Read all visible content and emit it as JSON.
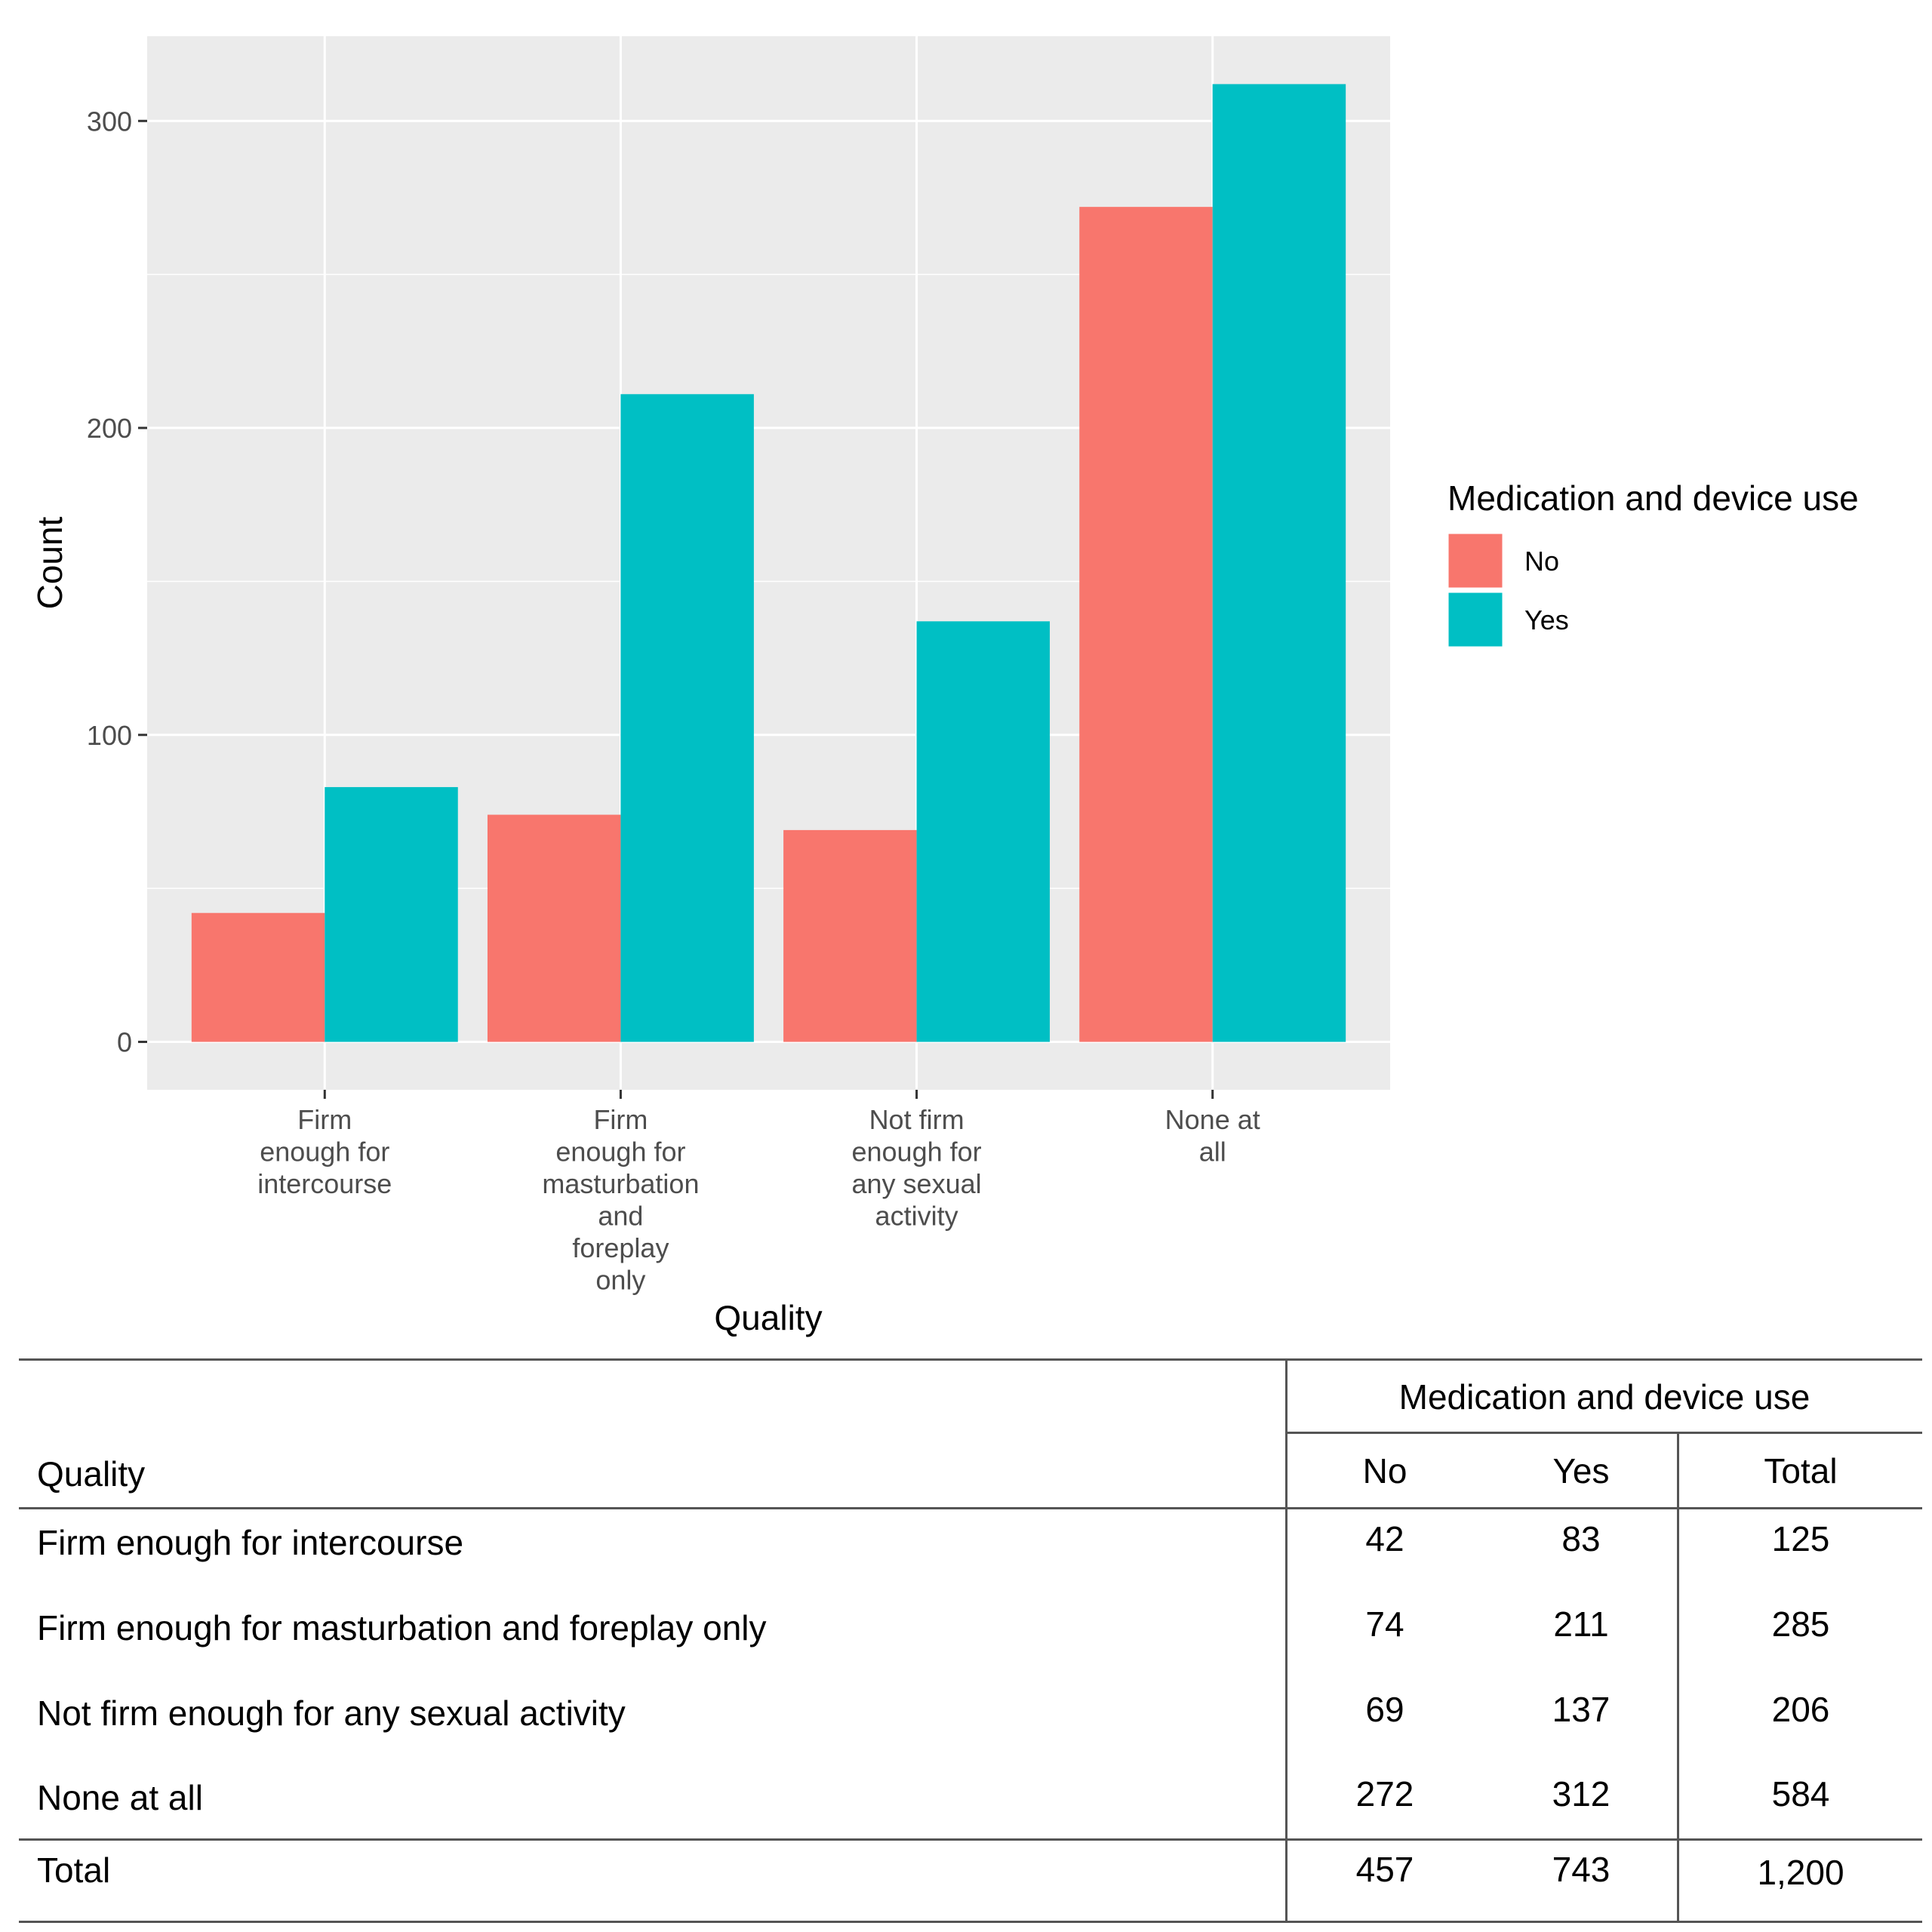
{
  "chart_data": {
    "type": "bar",
    "categories": [
      [
        "Firm",
        "enough for",
        "intercourse"
      ],
      [
        "Firm",
        "enough for",
        "masturbation",
        "and",
        "foreplay",
        "only"
      ],
      [
        "Not firm",
        "enough for",
        "any sexual",
        "activity"
      ],
      [
        "None at",
        "all"
      ]
    ],
    "series": [
      {
        "name": "No",
        "values": [
          42,
          74,
          69,
          272
        ],
        "color": "#F8766D"
      },
      {
        "name": "Yes",
        "values": [
          83,
          211,
          137,
          312
        ],
        "color": "#00BFC4"
      }
    ],
    "xlabel": "Quality",
    "ylabel": "Count",
    "ylim": [
      -15.6,
      327.6
    ],
    "yticks": [
      0,
      100,
      200,
      300
    ],
    "grid": true,
    "panel_color": "#EBEBEB",
    "legend": {
      "title": "Medication and device use",
      "position": "right"
    }
  },
  "table": {
    "spanner": "Medication and device use",
    "row_header": "Quality",
    "col_headers": [
      "No",
      "Yes",
      "Total"
    ],
    "rows": [
      {
        "label": "Firm enough for intercourse",
        "values": [
          "42",
          "83",
          "125"
        ]
      },
      {
        "label": "Firm enough for masturbation and foreplay only",
        "values": [
          "74",
          "211",
          "285"
        ]
      },
      {
        "label": "Not firm enough for any sexual activity",
        "values": [
          "69",
          "137",
          "206"
        ]
      },
      {
        "label": "None at all",
        "values": [
          "272",
          "312",
          "584"
        ]
      }
    ],
    "total": {
      "label": "Total",
      "values": [
        "457",
        "743",
        "1,200"
      ]
    }
  }
}
